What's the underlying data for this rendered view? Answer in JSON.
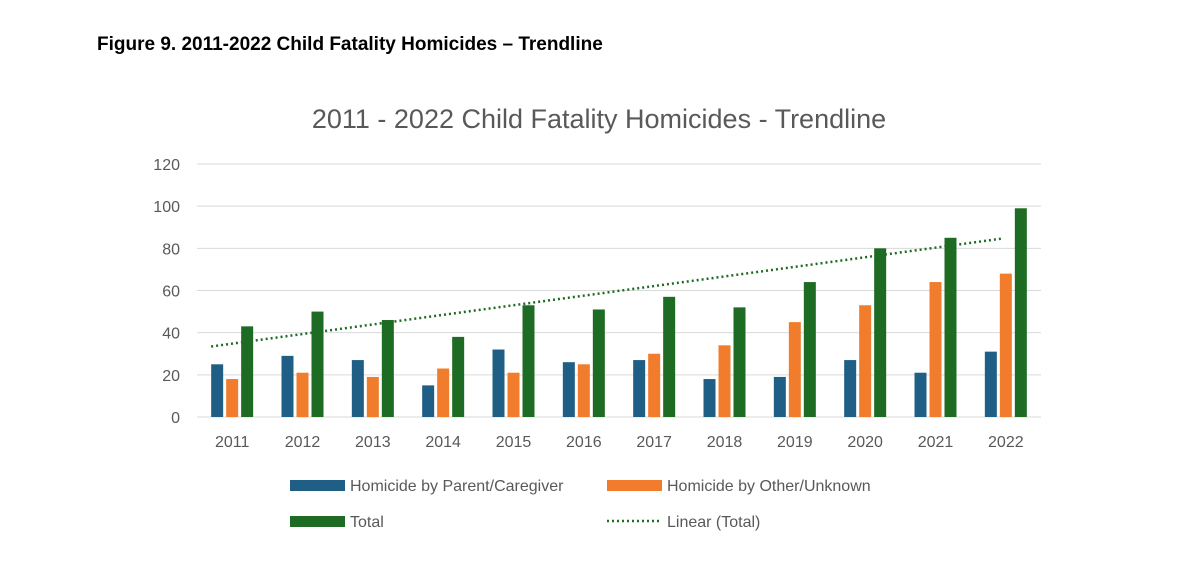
{
  "figure_caption": "Figure 9. 2011-2022 Child Fatality Homicides – Trendline",
  "chart_data": {
    "type": "bar",
    "title": "2011 - 2022 Child Fatality Homicides - Trendline",
    "xlabel": "",
    "ylabel": "",
    "ylim": [
      0,
      120
    ],
    "yticks": [
      0,
      20,
      40,
      60,
      80,
      100,
      120
    ],
    "grid": true,
    "legend_position": "bottom",
    "categories": [
      "2011",
      "2012",
      "2013",
      "2014",
      "2015",
      "2016",
      "2017",
      "2018",
      "2019",
      "2020",
      "2021",
      "2022"
    ],
    "series": [
      {
        "name": "Homicide by Parent/Caregiver",
        "color": "#1f5f86",
        "values": [
          25,
          29,
          27,
          15,
          32,
          26,
          27,
          18,
          19,
          27,
          21,
          31
        ]
      },
      {
        "name": "Homicide by Other/Unknown",
        "color": "#f07c2c",
        "values": [
          18,
          21,
          19,
          23,
          21,
          25,
          30,
          34,
          45,
          53,
          64,
          68
        ]
      },
      {
        "name": "Total",
        "color": "#1e6b24",
        "values": [
          43,
          50,
          46,
          38,
          53,
          51,
          57,
          52,
          64,
          80,
          85,
          99
        ]
      }
    ],
    "trendline": {
      "name": "Linear (Total)",
      "of_series": "Total",
      "type": "linear",
      "color": "#1e6b24",
      "style": "dotted"
    }
  }
}
